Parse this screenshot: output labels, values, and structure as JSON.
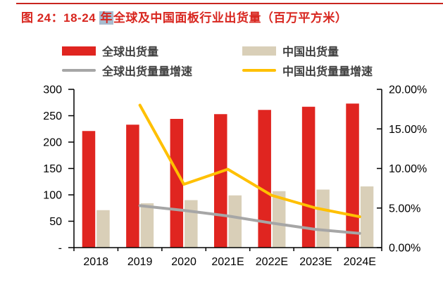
{
  "title": {
    "prefix": "图 24：18-24 ",
    "highlight": "年",
    "suffix": "全球及中国面板行业出货量（百万平方米）"
  },
  "colors": {
    "title_red": "#d8261f",
    "rule_red": "#c9251f",
    "selection_highlight": "#a7bccf",
    "axis_black": "#000000",
    "legend_text": "#3f3f3f",
    "global_bar_red": "#e02520",
    "china_bar_tan": "#d9cfb8",
    "global_line_gray": "#a6a6a6",
    "china_line_yellow": "#ffc000"
  },
  "legend": {
    "items": [
      {
        "label": "全球出货量",
        "swatch": "bar",
        "color": "#e02520"
      },
      {
        "label": "中国出货量",
        "swatch": "bar",
        "color": "#d9cfb8"
      },
      {
        "label": "全球出货量量增速",
        "swatch": "line",
        "color": "#a6a6a6"
      },
      {
        "label": "中国出货量量增速",
        "swatch": "line",
        "color": "#ffc000"
      }
    ]
  },
  "chart_data": {
    "type": "combo (bar + line, dual axis)",
    "title": "图 24：18-24 年全球及中国面板行业出货量（百万平方米）",
    "categories": [
      "2018",
      "2019",
      "2020",
      "2021E",
      "2022E",
      "2023E",
      "2024E"
    ],
    "bar_series": [
      {
        "name": "全球出货量",
        "axis": "left",
        "color": "#e02520",
        "values": [
          221,
          233,
          244,
          253,
          261,
          267,
          273
        ]
      },
      {
        "name": "中国出货量",
        "axis": "left",
        "color": "#d9cfb8",
        "values": [
          71,
          84,
          90,
          99,
          107,
          110,
          116
        ]
      }
    ],
    "line_series": [
      {
        "name": "全球出货量量增速",
        "axis": "right",
        "color": "#a6a6a6",
        "values": [
          null,
          5.3,
          4.7,
          4.0,
          3.1,
          2.3,
          1.8
        ]
      },
      {
        "name": "中国出货量量增速",
        "axis": "right",
        "color": "#ffc000",
        "values": [
          null,
          18.0,
          8.0,
          9.9,
          6.6,
          5.0,
          3.9
        ]
      }
    ],
    "left_axis": {
      "min": 0,
      "max": 300,
      "step": 50,
      "tick_labels": [
        "-",
        "50",
        "100",
        "150",
        "200",
        "250",
        "300"
      ]
    },
    "right_axis": {
      "min": 0,
      "max": 20,
      "step": 5,
      "tick_labels": [
        "0.00%",
        "5.00%",
        "10.00%",
        "15.00%",
        "20.00%"
      ]
    },
    "grid": "off",
    "legend_position": "top"
  }
}
